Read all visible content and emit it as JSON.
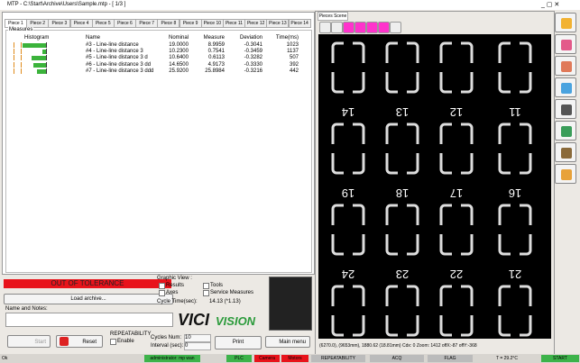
{
  "window": {
    "title": "MTP - C:\\Start\\Archive\\Users\\Sample.mtp - [ 1/3 ]"
  },
  "tabs": [
    "Piece 1",
    "Piece 2",
    "Piece 3",
    "Piece 4",
    "Piece 5",
    "Piece 6",
    "Piece 7",
    "Piece 8",
    "Piece 9",
    "Piece 10",
    "Piece 11",
    "Piece 12",
    "Piece 13",
    "Piece 14"
  ],
  "measures": {
    "title": "Measures",
    "columns": [
      "Histogram",
      "Name",
      "Nominal",
      "Measure",
      "Deviation",
      "Time(ms)"
    ],
    "rows": [
      [
        "#3 - Line-line distance",
        "19.0000",
        "8.9959",
        "-0.3041",
        "1023"
      ],
      [
        "#4 - Line-line distance 3",
        "10.2300",
        "0.7541",
        "-0.3459",
        "1137"
      ],
      [
        "#5 - Line-line distance 3 d",
        "10.6400",
        "0.6113",
        "-0.3282",
        "507"
      ],
      [
        "#6 - Line-line distance 3 dd",
        "14.6500",
        "4.9173",
        "-0.3330",
        "392"
      ],
      [
        "#7 - Line-line distance 3 ddd",
        "25.9200",
        "25.8984",
        "-0.3216",
        "442"
      ]
    ]
  },
  "status_banner": "OUT OF TOLERANCE",
  "load_archive": "Load archive...",
  "name_notes": "Name and Notes:",
  "graphic_view": {
    "title": "Graphic View :",
    "options": [
      "Results",
      "Tools",
      "Axes",
      "Service Measures"
    ],
    "cycle_time_label": "Cycle Time(sec):",
    "cycle_time": "14.13 (*1.13)"
  },
  "logo": [
    "VICI",
    "VISION"
  ],
  "repeatability": {
    "title": "REPEATABILITY",
    "enable": "Enable"
  },
  "buttons": {
    "start": "Start",
    "reset": "Reset",
    "print": "Print",
    "main_menu": "Main menu"
  },
  "cycles": {
    "num_label": "Cycles Num:",
    "num": "10",
    "interval_label": "Interval (sec):",
    "interval": "0"
  },
  "scene": {
    "tab": "Pieces Scene",
    "labels": [
      [
        "14",
        "13",
        "12",
        "11"
      ],
      [
        "19",
        "18",
        "17",
        "16"
      ],
      [
        "24",
        "23",
        "22",
        "21"
      ]
    ],
    "coords": "(6270.0), (9653mm), 1880.62 (18.81mm) Cdx: 0 Zoom: 1412 offX:-87 offY:-368"
  },
  "statusbar": [
    "Ok",
    "administrator: mp wan",
    "PLC",
    "Camera",
    "Motors",
    "REPEATABILITY",
    "ACQ",
    "FLAG",
    "T = 29.2°C",
    "START"
  ]
}
